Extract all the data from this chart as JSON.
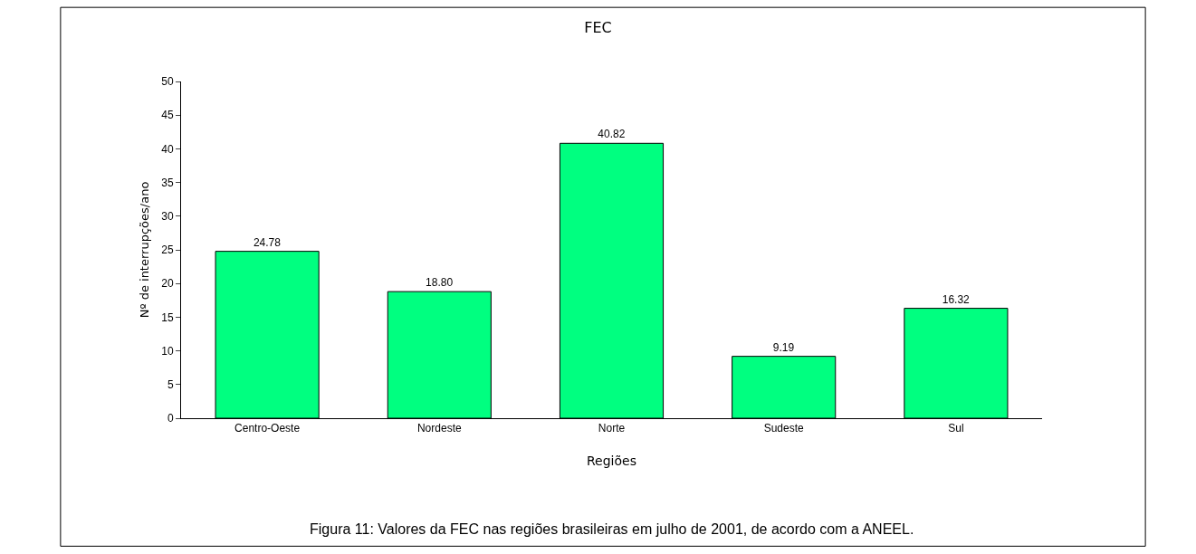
{
  "chart_data": {
    "type": "bar",
    "title": "FEC",
    "xlabel": "Regiões",
    "ylabel": "Nº de interrupções/ano",
    "categories": [
      "Centro-Oeste",
      "Nordeste",
      "Norte",
      "Sudeste",
      "Sul"
    ],
    "values": [
      24.78,
      18.8,
      40.82,
      9.19,
      16.32
    ],
    "value_labels": [
      "24.78",
      "18.80",
      "40.82",
      "9.19",
      "16.32"
    ],
    "color": "#00ff80",
    "ylim": [
      0,
      50
    ],
    "yticks": [
      0,
      5,
      10,
      15,
      20,
      25,
      30,
      35,
      40,
      45,
      50
    ],
    "grid": false,
    "annotations": [
      "Figura 11: Valores da FEC nas regiões brasileiras em julho de 2001, de acordo com a ANEEL."
    ]
  }
}
